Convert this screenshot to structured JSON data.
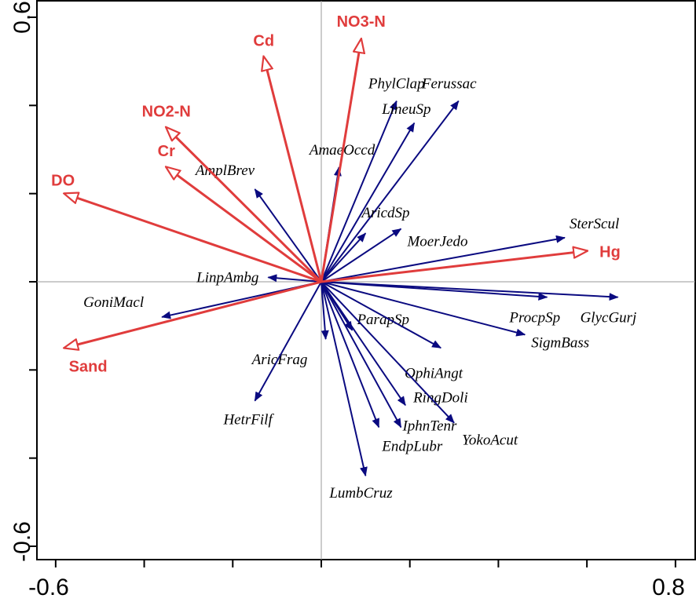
{
  "chart_data": {
    "type": "biplot",
    "x_ticks": [
      "-0.6",
      "0.8"
    ],
    "y_ticks": [
      "0.6",
      "-0.6"
    ],
    "xlim": [
      -0.6,
      0.8
    ],
    "ylim": [
      -0.6,
      0.6
    ],
    "grid": false,
    "colors": {
      "species": "#0a0a80",
      "environment": "#e03c3c",
      "axes": "#000000"
    },
    "environmental_variables": [
      {
        "label": "Cd",
        "x": -0.13,
        "y": 0.51
      },
      {
        "label": "NO3-N",
        "x": 0.09,
        "y": 0.55
      },
      {
        "label": "NO2-N",
        "x": -0.35,
        "y": 0.35
      },
      {
        "label": "Cr",
        "x": -0.35,
        "y": 0.26
      },
      {
        "label": "DO",
        "x": -0.58,
        "y": 0.2
      },
      {
        "label": "Hg",
        "x": 0.6,
        "y": 0.07
      },
      {
        "label": "Sand",
        "x": -0.58,
        "y": -0.15
      }
    ],
    "species": [
      {
        "label": "PhylClap",
        "x": 0.17,
        "y": 0.41
      },
      {
        "label": "LineuSp",
        "x": 0.21,
        "y": 0.36
      },
      {
        "label": "Ferussac",
        "x": 0.31,
        "y": 0.41
      },
      {
        "label": "AmaeOccd",
        "x": 0.04,
        "y": 0.26
      },
      {
        "label": "AmplBrev",
        "x": -0.15,
        "y": 0.21
      },
      {
        "label": "AricdSp",
        "x": 0.1,
        "y": 0.11
      },
      {
        "label": "MoerJedo",
        "x": 0.18,
        "y": 0.12
      },
      {
        "label": "SterScul",
        "x": 0.55,
        "y": 0.1
      },
      {
        "label": "LinpAmbg",
        "x": -0.12,
        "y": 0.01
      },
      {
        "label": "GoniMacl",
        "x": -0.36,
        "y": -0.08
      },
      {
        "label": "ProcpSp",
        "x": 0.51,
        "y": -0.035
      },
      {
        "label": "GlycGurj",
        "x": 0.67,
        "y": -0.035
      },
      {
        "label": "SigmBass",
        "x": 0.46,
        "y": -0.12
      },
      {
        "label": "ParapSp",
        "x": 0.07,
        "y": -0.11
      },
      {
        "label": "OphiAngt",
        "x": 0.27,
        "y": -0.15
      },
      {
        "label": "AricFrag",
        "x": 0.01,
        "y": -0.13
      },
      {
        "label": "RingDoli",
        "x": 0.19,
        "y": -0.28
      },
      {
        "label": "IphnTenr",
        "x": 0.18,
        "y": -0.33
      },
      {
        "label": "EndpLubr",
        "x": 0.13,
        "y": -0.33
      },
      {
        "label": "YokoAcut",
        "x": 0.3,
        "y": -0.32
      },
      {
        "label": "HetrFilf",
        "x": -0.15,
        "y": -0.27
      },
      {
        "label": "LumbCruz",
        "x": 0.1,
        "y": -0.44
      }
    ]
  }
}
